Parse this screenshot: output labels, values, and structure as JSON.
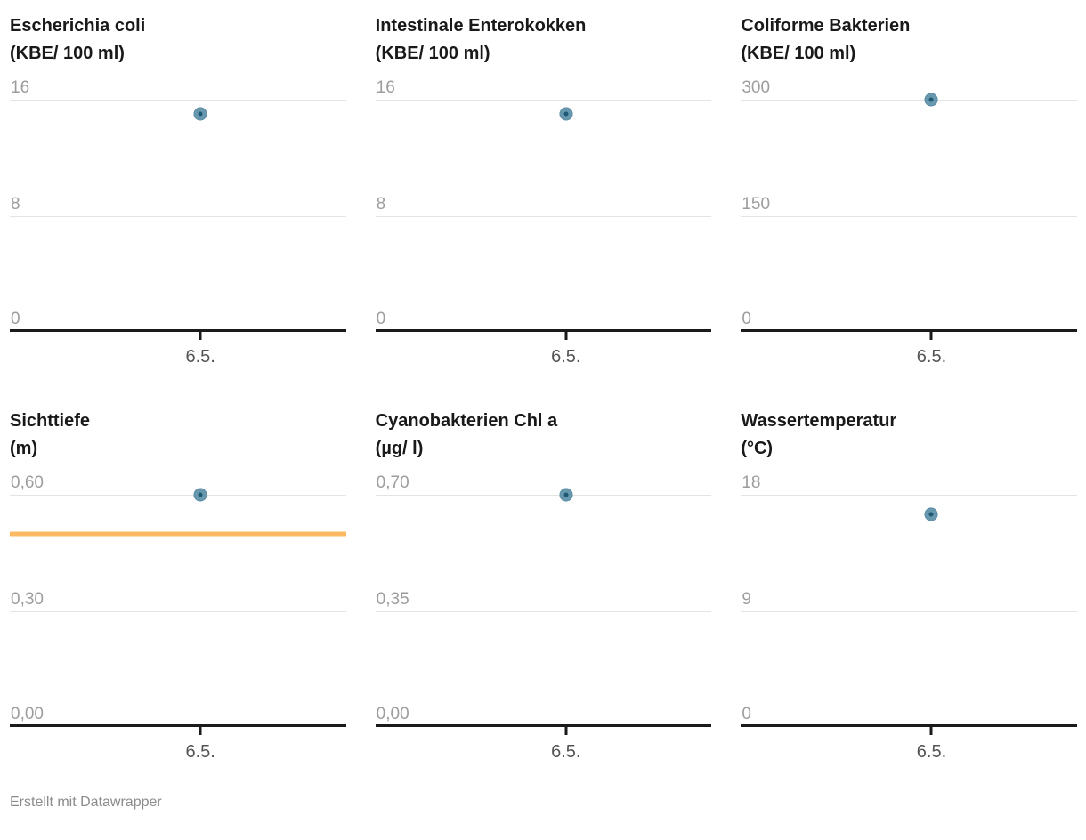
{
  "credit": "Erstellt mit Datawrapper",
  "axis": {
    "x_tick_label": "6.5.",
    "x_fraction": 0.567
  },
  "colors": {
    "point_fill": "#6798ae",
    "point_core": "#1e5a74",
    "gridline": "#e4e4e4",
    "axis_line": "#1a1a1a",
    "threshold_line": "#fbba62",
    "title_text": "#191919",
    "y_tick_text": "#9d9d9d",
    "x_tick_text": "#545454",
    "credit_text": "#8b8b8b"
  },
  "chart_data": [
    {
      "type": "scatter",
      "title": "Escherichia coli",
      "unit": "(KBE/ 100 ml)",
      "x": [
        "6.5."
      ],
      "values": [
        15
      ],
      "y_ticks": [
        "16",
        "8",
        "0"
      ],
      "ylim": [
        0,
        16
      ],
      "threshold": null
    },
    {
      "type": "scatter",
      "title": "Intestinale Enterokokken",
      "unit": "(KBE/ 100 ml)",
      "x": [
        "6.5."
      ],
      "values": [
        15
      ],
      "y_ticks": [
        "16",
        "8",
        "0"
      ],
      "ylim": [
        0,
        16
      ],
      "threshold": null
    },
    {
      "type": "scatter",
      "title": "Coliforme Bakterien",
      "unit": "(KBE/ 100 ml)",
      "x": [
        "6.5."
      ],
      "values": [
        300
      ],
      "y_ticks": [
        "300",
        "150",
        "0"
      ],
      "ylim": [
        0,
        300
      ],
      "threshold": null
    },
    {
      "type": "scatter",
      "title": "Sichttiefe",
      "unit": "(m)",
      "x": [
        "6.5."
      ],
      "values": [
        0.6
      ],
      "y_ticks": [
        "0,60",
        "0,30",
        "0,00"
      ],
      "ylim": [
        0,
        0.6
      ],
      "threshold": 0.5
    },
    {
      "type": "scatter",
      "title": "Cyanobakterien Chl a",
      "unit": "(µg/ l)",
      "x": [
        "6.5."
      ],
      "values": [
        0.7
      ],
      "y_ticks": [
        "0,70",
        "0,35",
        "0,00"
      ],
      "ylim": [
        0,
        0.7
      ],
      "threshold": null
    },
    {
      "type": "scatter",
      "title": "Wassertemperatur",
      "unit": "(°C)",
      "x": [
        "6.5."
      ],
      "values": [
        16.5
      ],
      "y_ticks": [
        "18",
        "9",
        "0"
      ],
      "ylim": [
        0,
        18
      ],
      "threshold": null
    }
  ]
}
